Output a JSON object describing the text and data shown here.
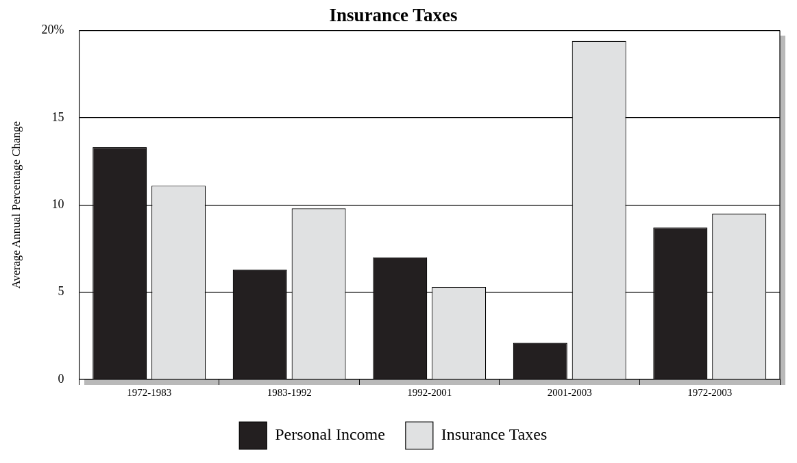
{
  "chart_data": {
    "type": "bar",
    "title": "Insurance Taxes",
    "ylabel": "Average Annual Percentage Change",
    "categories": [
      "1972-1983",
      "1983-1992",
      "1992-2001",
      "2001-2003",
      "1972-2003"
    ],
    "series": [
      {
        "name": "Personal Income",
        "color": "#231f20",
        "values": [
          13.3,
          6.3,
          7.0,
          2.1,
          8.7
        ]
      },
      {
        "name": "Insurance Taxes",
        "color": "#e0e1e2",
        "values": [
          11.1,
          9.8,
          5.3,
          19.4,
          9.5
        ]
      }
    ],
    "ylim": [
      0,
      20
    ],
    "yticks": [
      0,
      5,
      10,
      15,
      {
        "value": 20,
        "label": "20%"
      }
    ],
    "grid": "y",
    "legend": "bottom"
  }
}
